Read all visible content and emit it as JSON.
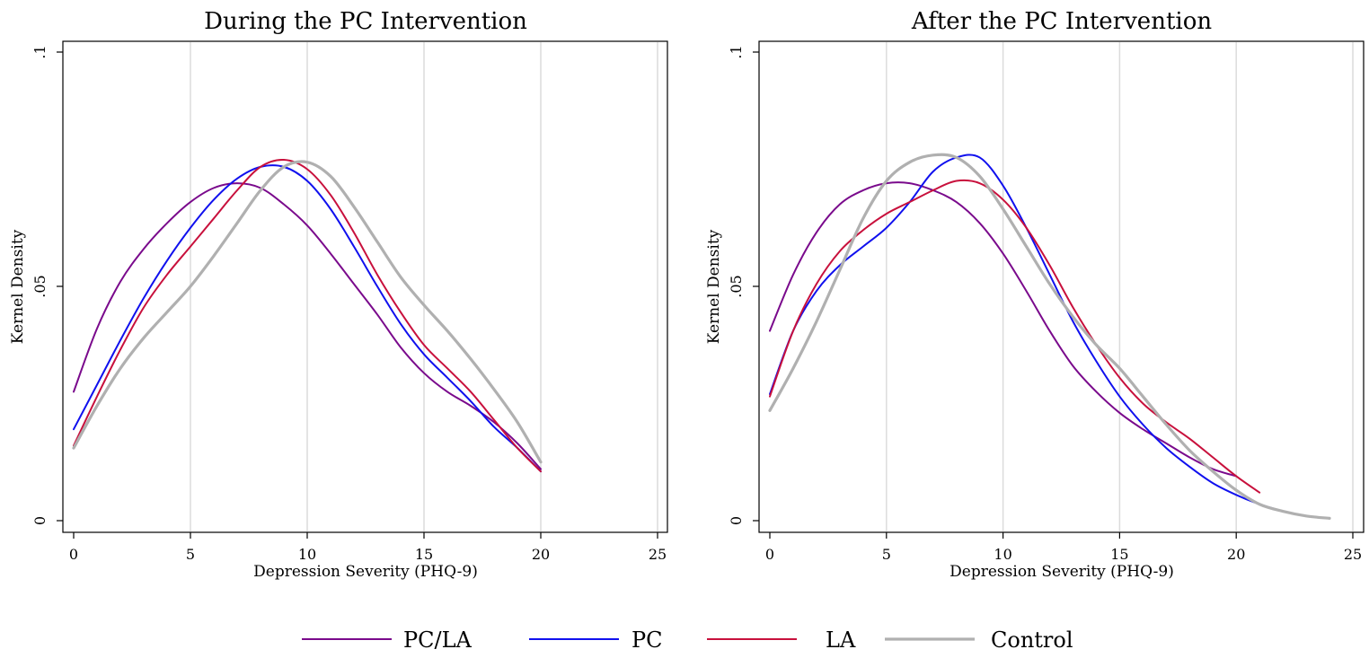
{
  "legend": {
    "items": [
      {
        "label": "PC/LA",
        "color": "#7a0a8c"
      },
      {
        "label": "PC",
        "color": "#1010ee"
      },
      {
        "label": "LA",
        "color": "#c8103c"
      },
      {
        "label": "Control",
        "color": "#b0b0b0"
      }
    ]
  },
  "chart_data": [
    {
      "type": "line",
      "title": "During the PC Intervention",
      "xlabel": "Depression Severity (PHQ-9)",
      "ylabel": "Kernel Density",
      "xlim": [
        0,
        25
      ],
      "ylim": [
        0,
        0.1
      ],
      "x_ticks": [
        "0",
        "5",
        "10",
        "15",
        "20",
        "25"
      ],
      "x_tick_values": [
        0,
        5,
        10,
        15,
        20,
        25
      ],
      "y_ticks": [
        "0",
        ".05",
        ".1"
      ],
      "y_tick_values": [
        0,
        0.05,
        0.1
      ],
      "grid": "vertical",
      "series": [
        {
          "name": "PC/LA",
          "color": "#7a0a8c",
          "x": [
            0,
            1,
            2,
            3,
            4,
            5,
            6,
            7,
            8,
            9,
            10,
            11,
            12,
            13,
            14,
            15,
            16,
            17,
            18,
            19,
            20
          ],
          "y": [
            0.0275,
            0.041,
            0.051,
            0.058,
            0.0635,
            0.068,
            0.071,
            0.072,
            0.071,
            0.0675,
            0.063,
            0.057,
            0.0505,
            0.044,
            0.037,
            0.0315,
            0.0275,
            0.0245,
            0.021,
            0.0165,
            0.011
          ]
        },
        {
          "name": "PC",
          "color": "#1010ee",
          "x": [
            0,
            1,
            2,
            3,
            4,
            5,
            6,
            7,
            8,
            9,
            10,
            11,
            12,
            13,
            14,
            15,
            16,
            17,
            18,
            19,
            20
          ],
          "y": [
            0.0195,
            0.029,
            0.0385,
            0.0475,
            0.0555,
            0.0625,
            0.0685,
            0.073,
            0.0755,
            0.0755,
            0.0725,
            0.0665,
            0.0585,
            0.05,
            0.042,
            0.0355,
            0.0305,
            0.0255,
            0.02,
            0.0155,
            0.0105
          ]
        },
        {
          "name": "LA",
          "color": "#c8103c",
          "x": [
            0,
            1,
            2,
            3,
            4,
            5,
            6,
            7,
            8,
            9,
            10,
            11,
            12,
            13,
            14,
            15,
            16,
            17,
            18,
            19,
            20
          ],
          "y": [
            0.016,
            0.0265,
            0.0365,
            0.0455,
            0.0525,
            0.0585,
            0.0645,
            0.0705,
            0.0755,
            0.077,
            0.075,
            0.0695,
            0.0615,
            0.0525,
            0.0445,
            0.0375,
            0.0325,
            0.0275,
            0.0215,
            0.0155,
            0.0105
          ]
        },
        {
          "name": "Control",
          "color": "#b0b0b0",
          "x": [
            0,
            1,
            2,
            3,
            4,
            5,
            6,
            7,
            8,
            9,
            10,
            11,
            12,
            13,
            14,
            15,
            16,
            17,
            18,
            19,
            20
          ],
          "y": [
            0.0155,
            0.0245,
            0.0325,
            0.039,
            0.0445,
            0.05,
            0.0565,
            0.0635,
            0.0705,
            0.0755,
            0.0765,
            0.0735,
            0.067,
            0.0595,
            0.052,
            0.046,
            0.0405,
            0.0345,
            0.028,
            0.021,
            0.0125
          ]
        }
      ]
    },
    {
      "type": "line",
      "title": "After the PC Intervention",
      "xlabel": "Depression Severity (PHQ-9)",
      "ylabel": "Kernel Density",
      "xlim": [
        0,
        25
      ],
      "ylim": [
        0,
        0.1
      ],
      "x_ticks": [
        "0",
        "5",
        "10",
        "15",
        "20",
        "25"
      ],
      "x_tick_values": [
        0,
        5,
        10,
        15,
        20,
        25
      ],
      "y_ticks": [
        "0",
        ".05",
        ".1"
      ],
      "y_tick_values": [
        0,
        0.05,
        0.1
      ],
      "grid": "vertical",
      "series": [
        {
          "name": "PC/LA",
          "color": "#7a0a8c",
          "x": [
            0,
            1,
            2,
            3,
            4,
            5,
            6,
            7,
            8,
            9,
            10,
            11,
            12,
            13,
            14,
            15,
            16,
            17,
            18,
            19,
            20
          ],
          "y": [
            0.0405,
            0.0525,
            0.0615,
            0.0675,
            0.0705,
            0.072,
            0.072,
            0.0705,
            0.068,
            0.0635,
            0.057,
            0.049,
            0.0405,
            0.033,
            0.0275,
            0.023,
            0.0195,
            0.0165,
            0.0135,
            0.011,
            0.0095
          ]
        },
        {
          "name": "PC",
          "color": "#1010ee",
          "x": [
            0,
            1,
            2,
            3,
            4,
            5,
            6,
            7,
            8,
            9,
            10,
            11,
            12,
            13,
            14,
            15,
            16,
            17,
            18,
            19,
            20,
            21,
            22
          ],
          "y": [
            0.027,
            0.0405,
            0.049,
            0.0545,
            0.0585,
            0.0625,
            0.068,
            0.0745,
            0.0775,
            0.0775,
            0.0715,
            0.0625,
            0.0525,
            0.0425,
            0.034,
            0.0265,
            0.0205,
            0.0155,
            0.0115,
            0.008,
            0.0055,
            0.0035,
            0.002
          ]
        },
        {
          "name": "LA",
          "color": "#c8103c",
          "x": [
            0,
            1,
            2,
            3,
            4,
            5,
            6,
            7,
            8,
            9,
            10,
            11,
            12,
            13,
            14,
            15,
            16,
            17,
            18,
            19,
            20,
            21
          ],
          "y": [
            0.0265,
            0.0405,
            0.0505,
            0.0575,
            0.062,
            0.0655,
            0.068,
            0.0705,
            0.0725,
            0.072,
            0.0685,
            0.0625,
            0.0545,
            0.0455,
            0.0375,
            0.0305,
            0.025,
            0.021,
            0.0175,
            0.0135,
            0.0095,
            0.006
          ]
        },
        {
          "name": "Control",
          "color": "#b0b0b0",
          "x": [
            0,
            1,
            2,
            3,
            4,
            5,
            6,
            7,
            8,
            9,
            10,
            11,
            12,
            13,
            14,
            15,
            16,
            17,
            18,
            19,
            20,
            21,
            22,
            23,
            24
          ],
          "y": [
            0.0235,
            0.0325,
            0.0425,
            0.0535,
            0.0645,
            0.0725,
            0.0765,
            0.078,
            0.0775,
            0.0735,
            0.0665,
            0.0585,
            0.0505,
            0.0435,
            0.0375,
            0.0325,
            0.0265,
            0.0205,
            0.015,
            0.0105,
            0.0065,
            0.0035,
            0.002,
            0.001,
            0.0005
          ]
        }
      ]
    }
  ]
}
